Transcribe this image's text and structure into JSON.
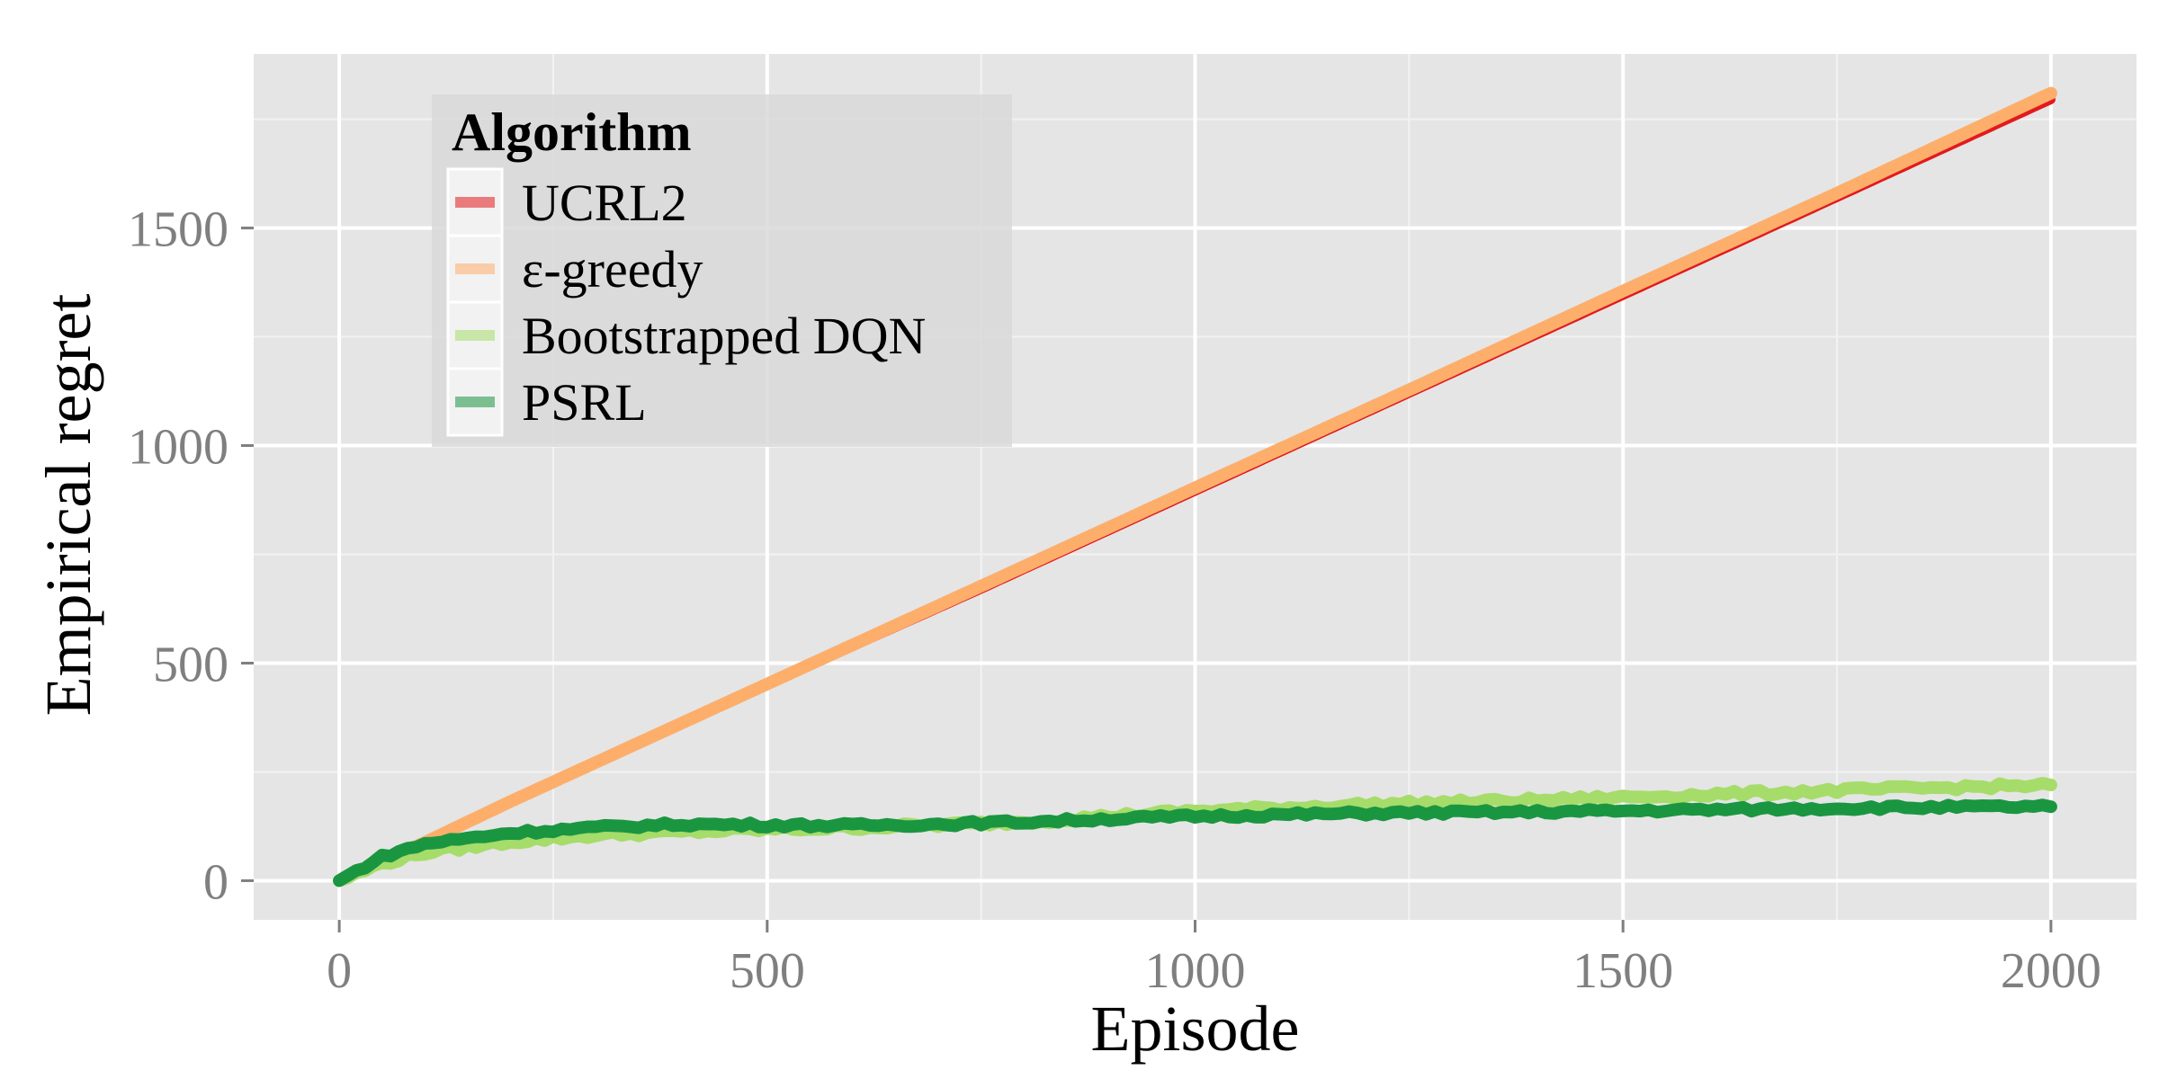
{
  "chart_data": {
    "type": "line",
    "xlabel": "Episode",
    "ylabel": "Empirical regret",
    "xlim": [
      -100,
      2100
    ],
    "ylim": [
      -90,
      1900
    ],
    "x_ticks": [
      0,
      500,
      1000,
      1500,
      2000
    ],
    "y_ticks": [
      0,
      500,
      1000,
      1500
    ],
    "x_tick_labels": [
      "0",
      "500",
      "1000",
      "1500",
      "2000"
    ],
    "y_tick_labels": [
      "0",
      "500",
      "1000",
      "1500"
    ],
    "grid": true,
    "legend": {
      "title": "Algorithm",
      "placement": "top-left"
    },
    "series": [
      {
        "name": "UCRL2",
        "color": "#e31a1c",
        "x": [
          0,
          100,
          200,
          300,
          400,
          500,
          750,
          1000,
          1250,
          1500,
          1750,
          2000
        ],
        "y": [
          0,
          90,
          180,
          270,
          360,
          450,
          670,
          895,
          1120,
          1345,
          1570,
          1795
        ]
      },
      {
        "name": "ε-greedy",
        "color": "#fdae6b",
        "x": [
          0,
          100,
          200,
          300,
          400,
          500,
          750,
          1000,
          1250,
          1500,
          1750,
          2000
        ],
        "y": [
          0,
          88,
          182,
          272,
          362,
          452,
          677,
          903,
          1128,
          1355,
          1580,
          1810
        ]
      },
      {
        "name": "Bootstrapped DQN",
        "color": "#a6dc6a",
        "x": [
          0,
          50,
          100,
          200,
          300,
          400,
          500,
          600,
          700,
          800,
          900,
          1000,
          1200,
          1400,
          1600,
          1800,
          2000
        ],
        "y": [
          0,
          40,
          65,
          90,
          105,
          112,
          118,
          122,
          128,
          135,
          148,
          160,
          175,
          185,
          198,
          210,
          220
        ]
      },
      {
        "name": "PSRL",
        "color": "#1a9641",
        "x": [
          0,
          50,
          100,
          200,
          300,
          400,
          500,
          600,
          700,
          800,
          900,
          1000,
          1200,
          1400,
          1600,
          1800,
          2000
        ],
        "y": [
          0,
          55,
          85,
          110,
          122,
          130,
          128,
          127,
          130,
          135,
          142,
          148,
          155,
          158,
          163,
          168,
          170
        ]
      }
    ]
  }
}
